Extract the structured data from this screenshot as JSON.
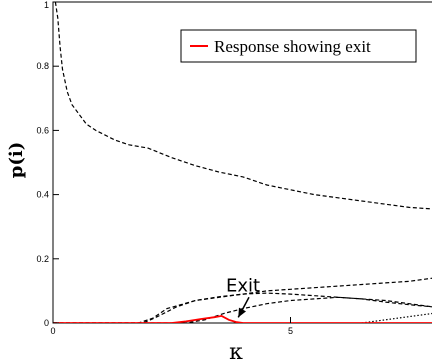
{
  "chart_data": {
    "type": "line",
    "xlabel": "κ",
    "ylabel": "p(i)",
    "xlim": [
      0,
      8
    ],
    "ylim": [
      0,
      1
    ],
    "x_ticks": [
      0,
      5
    ],
    "x_tick_labels": [
      "0",
      "5"
    ],
    "y_ticks": [
      0,
      0.2,
      0.4,
      0.6,
      0.8,
      1
    ],
    "y_tick_labels": [
      "0",
      "0.2",
      "0.4",
      "0.6",
      "0.8",
      "1"
    ],
    "legend": {
      "position": "top-right",
      "entries": [
        {
          "label": "Response showing exit",
          "color": "#ff0000"
        }
      ]
    },
    "annotations": [
      {
        "text": "Exit",
        "x": 4.0,
        "y": 0.13,
        "arrow_to": {
          "x": 3.9,
          "y": 0.005
        }
      }
    ],
    "series": [
      {
        "style": "dashed",
        "color": "#000000",
        "x": [
          0.05,
          0.1,
          0.15,
          0.2,
          0.3,
          0.4,
          0.55,
          0.7,
          0.9,
          1.1,
          1.3,
          1.6,
          2.0,
          2.5,
          3.0,
          3.5,
          4.0,
          4.5,
          5.0,
          5.5,
          6.0,
          6.5,
          7.0,
          7.5,
          8.0
        ],
        "y": [
          1.0,
          0.95,
          0.86,
          0.79,
          0.72,
          0.68,
          0.65,
          0.62,
          0.6,
          0.585,
          0.57,
          0.555,
          0.545,
          0.515,
          0.49,
          0.47,
          0.455,
          0.43,
          0.415,
          0.4,
          0.39,
          0.38,
          0.37,
          0.36,
          0.355
        ]
      },
      {
        "style": "dashed",
        "color": "#000000",
        "x": [
          0,
          1.5,
          1.8,
          2.1,
          2.4,
          3.0,
          3.5,
          4.0,
          4.5,
          5.0,
          5.5,
          6.0,
          6.5,
          7.0,
          7.5,
          8.0
        ],
        "y": [
          0,
          0,
          0,
          0.015,
          0.045,
          0.07,
          0.08,
          0.09,
          0.1,
          0.105,
          0.11,
          0.115,
          0.12,
          0.125,
          0.13,
          0.14
        ]
      },
      {
        "style": "dashed",
        "color": "#000000",
        "x": [
          0,
          1.6,
          1.9,
          2.2,
          2.6,
          3.0,
          3.5,
          4.0,
          4.5,
          5.0,
          5.5,
          6.0,
          6.5,
          7.0,
          7.5,
          8.0
        ],
        "y": [
          0,
          0,
          0,
          0.02,
          0.05,
          0.07,
          0.082,
          0.09,
          0.093,
          0.09,
          0.085,
          0.08,
          0.075,
          0.065,
          0.057,
          0.05
        ]
      },
      {
        "style": "dashed",
        "color": "#000000",
        "x": [
          0,
          2.8,
          3.2,
          3.6,
          4.0,
          4.5,
          5.0,
          5.5,
          6.0,
          6.5,
          7.0,
          7.5,
          8.0
        ],
        "y": [
          0,
          0,
          0.01,
          0.03,
          0.045,
          0.06,
          0.07,
          0.075,
          0.08,
          0.075,
          0.07,
          0.06,
          0.05
        ]
      },
      {
        "style": "dotted",
        "color": "#000000",
        "x": [
          6.5,
          7.0,
          7.5,
          8.0
        ],
        "y": [
          0.0,
          0.01,
          0.02,
          0.03
        ]
      },
      {
        "style": "solid",
        "color": "#ff0000",
        "x": [
          0,
          2.5,
          2.8,
          3.1,
          3.4,
          3.55,
          3.7,
          3.85,
          4.0,
          8.0
        ],
        "y": [
          0,
          0,
          0.005,
          0.012,
          0.018,
          0.022,
          0.01,
          0.003,
          0,
          0
        ]
      }
    ]
  }
}
